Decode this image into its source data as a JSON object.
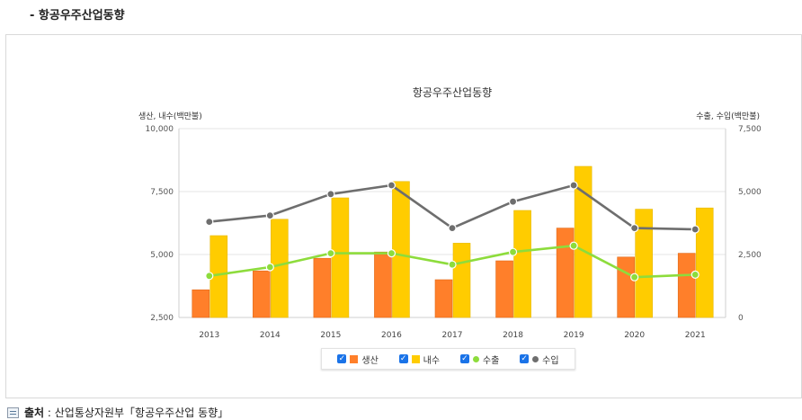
{
  "section_title": "- 항공우주산업동향",
  "source": {
    "label": "출처",
    "text": " : 산업통상자원부「항공우주산업 동향」",
    "icon": "document-icon"
  },
  "colors": {
    "production": "#ff7f2a",
    "domestic": "#ffcc00",
    "export": "#8ddc3c",
    "import": "#6e6e6e",
    "checkbox": "#1a73e8"
  },
  "chart_data": {
    "type": "bar",
    "title": "항공우주산업동향",
    "ylabel_left": "생산, 내수(백만불)",
    "ylabel_right": "수출, 수입(백만불)",
    "categories": [
      "2013",
      "2014",
      "2015",
      "2016",
      "2017",
      "2018",
      "2019",
      "2020",
      "2021"
    ],
    "ylim_left": [
      2500,
      10000
    ],
    "yticks_left": [
      "2,500",
      "5,000",
      "7,500",
      "10,000"
    ],
    "ylim_right": [
      0,
      7500
    ],
    "yticks_right": [
      "0",
      "2,500",
      "5,000",
      "7,500"
    ],
    "grid": true,
    "legend_position": "bottom",
    "series": [
      {
        "name": "생산",
        "type": "bar",
        "axis": "left",
        "values": [
          3600,
          4350,
          4850,
          5100,
          4000,
          4750,
          6050,
          4900,
          5050
        ]
      },
      {
        "name": "내수",
        "type": "bar",
        "axis": "left",
        "values": [
          5750,
          6400,
          7250,
          7900,
          5450,
          6750,
          8500,
          6800,
          6850
        ]
      },
      {
        "name": "수출",
        "type": "line",
        "axis": "right",
        "values": [
          1650,
          2000,
          2550,
          2550,
          2100,
          2600,
          2850,
          1600,
          1700
        ]
      },
      {
        "name": "수입",
        "type": "line",
        "axis": "right",
        "values": [
          3800,
          4050,
          4900,
          5250,
          3550,
          4600,
          5250,
          3550,
          3500
        ]
      }
    ]
  }
}
